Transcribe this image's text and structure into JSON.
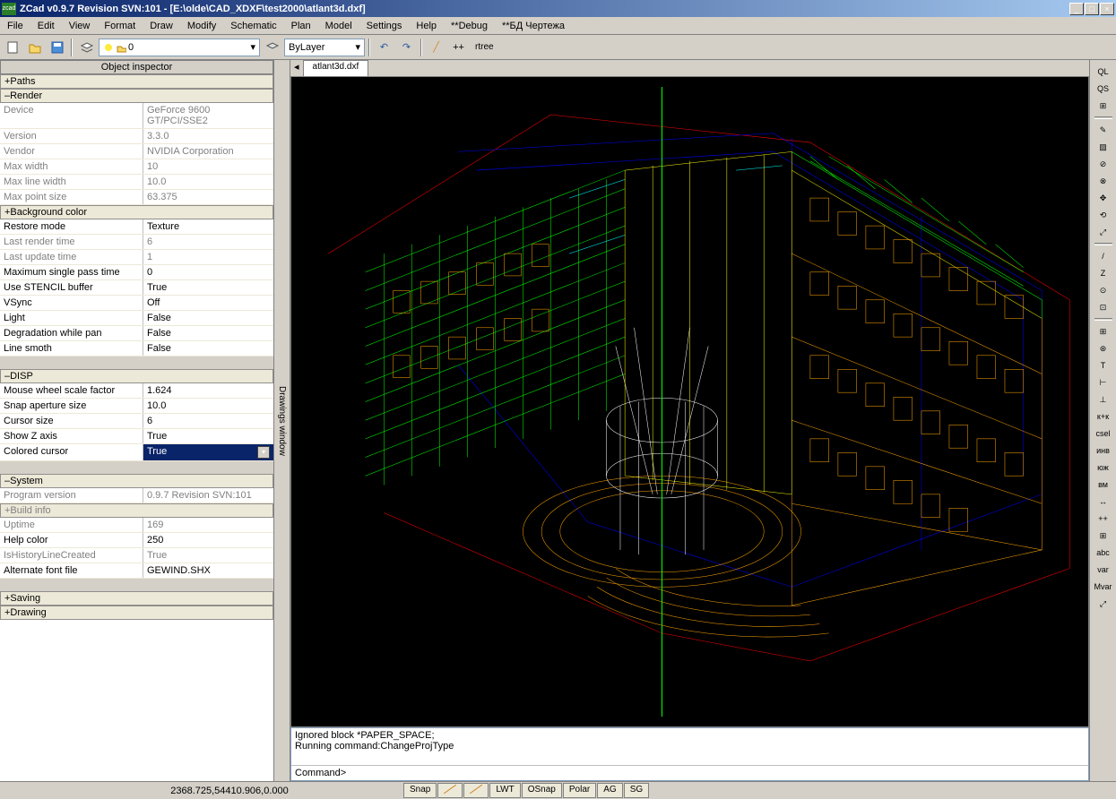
{
  "window": {
    "title": "ZCad v0.9.7 Revision SVN:101 - [E:\\olde\\CAD_XDXF\\test2000\\atlant3d.dxf]",
    "icon_label": "zcad"
  },
  "menu": [
    "File",
    "Edit",
    "View",
    "Format",
    "Draw",
    "Modify",
    "Schematic",
    "Plan",
    "Model",
    "Settings",
    "Help",
    "**Debug",
    "**БД Чертежа"
  ],
  "toolbar": {
    "layer_value": "0",
    "style_value": "ByLayer",
    "rtree_label": "rtree"
  },
  "inspector": {
    "title": "Object inspector",
    "sections": [
      {
        "label": "+Paths",
        "rows": []
      },
      {
        "label": "–Render",
        "rows": [
          {
            "k": "Device",
            "v": "GeForce 9600 GT/PCI/SSE2",
            "dim": true
          },
          {
            "k": "Version",
            "v": "3.3.0",
            "dim": true
          },
          {
            "k": "Vendor",
            "v": "NVIDIA Corporation",
            "dim": true
          },
          {
            "k": "Max width",
            "v": "10",
            "dim": true
          },
          {
            "k": "Max line width",
            "v": "10.0",
            "dim": true
          },
          {
            "k": "Max point size",
            "v": "63.375",
            "dim": true
          },
          {
            "k": "+Background color",
            "v": "",
            "section": true
          },
          {
            "k": "Restore mode",
            "v": "Texture"
          },
          {
            "k": "Last render time",
            "v": "6",
            "dim": true
          },
          {
            "k": "Last update time",
            "v": "1",
            "dim": true
          },
          {
            "k": "Maximum single pass time",
            "v": "0"
          },
          {
            "k": "Use STENCIL buffer",
            "v": "True"
          },
          {
            "k": "VSync",
            "v": "Off"
          },
          {
            "k": "Light",
            "v": "False"
          },
          {
            "k": "Degradation while pan",
            "v": "False"
          },
          {
            "k": "Line smoth",
            "v": "False"
          }
        ]
      },
      {
        "label": "–DISP",
        "rows": [
          {
            "k": "Mouse wheel scale factor",
            "v": "1.624"
          },
          {
            "k": "Snap aperture size",
            "v": "10.0"
          },
          {
            "k": "Cursor size",
            "v": "6"
          },
          {
            "k": "Show Z axis",
            "v": "True"
          },
          {
            "k": "Colored cursor",
            "v": "True",
            "sel": true,
            "combo": true
          }
        ]
      },
      {
        "label": "–System",
        "rows": [
          {
            "k": "Program version",
            "v": "0.9.7 Revision SVN:101",
            "dim": true
          },
          {
            "k": "+Build info",
            "v": "",
            "dim": true,
            "section": true
          },
          {
            "k": "Uptime",
            "v": "169",
            "dim": true
          },
          {
            "k": "Help color",
            "v": "250"
          },
          {
            "k": "IsHistoryLineCreated",
            "v": "True",
            "dim": true
          },
          {
            "k": "Alternate font file",
            "v": "GEWIND.SHX"
          }
        ]
      },
      {
        "label": "+Saving",
        "rows": []
      },
      {
        "label": "+Drawing",
        "rows": []
      }
    ]
  },
  "tabs": {
    "vlabel": "Drawings window",
    "file": "atlant3d.dxf"
  },
  "viewport": {
    "background": "#000000",
    "colors": {
      "green": "#00ff00",
      "orange": "#ffa500",
      "cyan": "#00ffff",
      "blue": "#0000ff",
      "red": "#ff0000",
      "white": "#ffffff",
      "yellow": "#ffff00"
    }
  },
  "console": {
    "log1": "Ignored block *PAPER_SPACE;",
    "log2": "Running command:ChangeProjType",
    "prompt": "Command>"
  },
  "right_tools": [
    "QL",
    "QS",
    "⊞",
    "",
    "✎",
    "▨",
    "⊘",
    "⊗",
    "✥",
    "⟲",
    "⤢",
    "",
    "/",
    "Z",
    "⊙",
    "⊡",
    "",
    "⊞",
    "⊛",
    "T",
    "⊢",
    "⊥",
    "к+к",
    "csel",
    "инв",
    "юж",
    "вм",
    "↔",
    "++",
    "⊞",
    "abc",
    "var",
    "Mvar",
    "⤢"
  ],
  "status": {
    "coords": "2368.725,54410.906,0.000",
    "toggles": [
      "Snap",
      "",
      "",
      "LWT",
      "OSnap",
      "Polar",
      "AG",
      "SG"
    ]
  }
}
